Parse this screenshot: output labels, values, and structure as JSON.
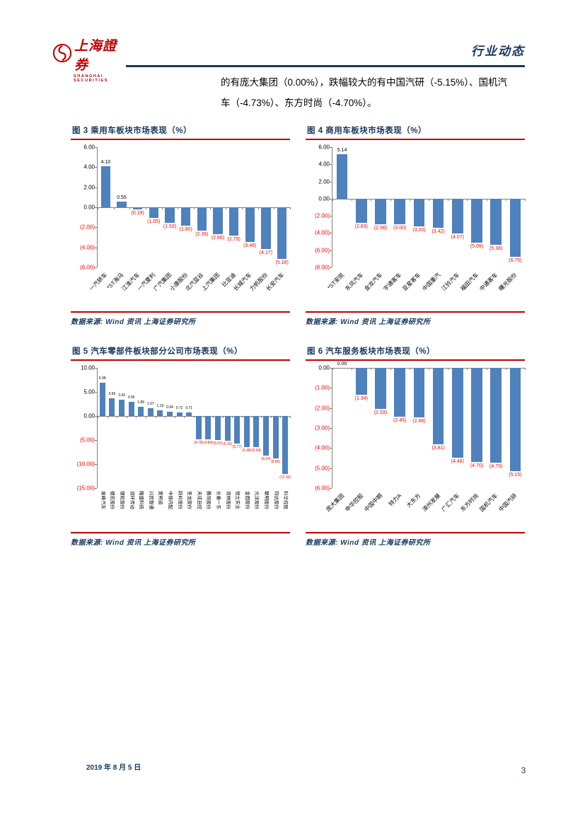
{
  "header": {
    "logo": {
      "brand_cn": "上海證券",
      "brand_en": "SHANGHAI SECURITIES"
    },
    "page_type": "行业动态",
    "accent_color": "#17375E",
    "logo_color": "#C00000"
  },
  "body_text": {
    "lines": [
      "的有庞大集团（0.00%），跌幅较大的有中国汽研（-5.15%）、国机汽",
      "车（-4.73%）、东方时尚（-4.70%）。"
    ]
  },
  "chart_data": [
    {
      "id": "figure-3",
      "type": "bar",
      "title": "图 3 乘用车板块市场表现（%）",
      "categories": [
        "一汽轿车",
        "*ST海马",
        "江淮汽车",
        "一汽夏利",
        "广汽集团",
        "小康股份",
        "北汽蓝谷",
        "上汽集团",
        "比亚迪",
        "长城汽车",
        "力帆股份",
        "长安汽车"
      ],
      "values": [
        4.1,
        0.55,
        -0.19,
        -1.05,
        -1.53,
        -1.8,
        -2.36,
        -2.66,
        -2.79,
        -3.46,
        -4.17,
        -5.18
      ],
      "ylim": [
        -6,
        6
      ],
      "yticks": [
        6,
        4,
        2,
        0,
        -2,
        -4,
        -6
      ],
      "bar_color": "#4F81BD",
      "negative_label_color": "#FF0000",
      "label_rotation": 45,
      "grid": false,
      "legend": false,
      "source": "数据来源: Wind 资讯 上海证券研究所"
    },
    {
      "id": "figure-4",
      "type": "bar",
      "title": "图 4 商用车板块市场表现（%）",
      "categories": [
        "*ST安凯",
        "东风汽车",
        "金龙汽车",
        "宇通客车",
        "亚星客车",
        "中国重汽",
        "江铃汽车",
        "福田汽车",
        "中通客车",
        "曙光股份"
      ],
      "values": [
        5.14,
        -2.83,
        -2.98,
        -3.0,
        -3.2,
        -3.42,
        -4.07,
        -5.09,
        -5.38,
        -6.75
      ],
      "ylim": [
        -8,
        6
      ],
      "yticks": [
        6,
        4,
        2,
        0,
        -2,
        -4,
        -6,
        -8
      ],
      "bar_color": "#4F81BD",
      "negative_label_color": "#FF0000",
      "label_rotation": 45,
      "grid": false,
      "legend": false,
      "source": "数据来源: Wind 资讯 上海证券研究所"
    },
    {
      "id": "figure-5",
      "type": "bar",
      "title": "图 5 汽车零部件板块部分公司市场表现（%）",
      "categories": [
        "泉峰汽车",
        "德宏股份",
        "银轮股份",
        "双环传动",
        "隆盛科技",
        "兴民智通",
        "爱柯迪",
        "中原内配",
        "跃岭股份",
        "圣龙股份",
        "天成自控",
        "鹏翎股份",
        "长春一东",
        "双林股份",
        "恒立实业",
        "金固股份",
        "光洋股份",
        "联明股份",
        "钧达股份",
        "科华控股"
      ],
      "values": [
        6.98,
        3.66,
        3.43,
        3.0,
        1.89,
        1.67,
        1.19,
        0.94,
        0.72,
        0.71,
        -4.78,
        -4.84,
        -5.02,
        -5.16,
        -5.77,
        -6.48,
        -6.54,
        -8.24,
        -8.85,
        -12.0
      ],
      "ylim": [
        -15,
        10
      ],
      "yticks": [
        10,
        5,
        0,
        -5,
        -10,
        -15
      ],
      "bar_color": "#4F81BD",
      "negative_label_color": "#FF0000",
      "label_rotation": 90,
      "grid": false,
      "legend": false,
      "source": "数据来源: Wind 资讯 上海证券研究所"
    },
    {
      "id": "figure-6",
      "type": "bar",
      "title": "图 6 汽车服务板块市场表现（%）",
      "categories": [
        "庞大集团",
        "申华控股",
        "中国中期",
        "特力A",
        "大东方",
        "漳州发展",
        "广汇汽车",
        "东方时尚",
        "国机汽车",
        "中国汽研"
      ],
      "values": [
        0.0,
        -1.34,
        -2.03,
        -2.45,
        -2.48,
        -3.81,
        -4.48,
        -4.7,
        -4.73,
        -5.15
      ],
      "ylim": [
        -6,
        0
      ],
      "yticks": [
        0,
        -1,
        -2,
        -3,
        -4,
        -5,
        -6
      ],
      "bar_color": "#4F81BD",
      "negative_label_color": "#FF0000",
      "label_rotation": 45,
      "grid": false,
      "legend": false,
      "source": "数据来源: Wind 资讯 上海证券研究所"
    }
  ],
  "footer": {
    "date": "2019 年 8 月 5 日",
    "page_number": "3"
  }
}
